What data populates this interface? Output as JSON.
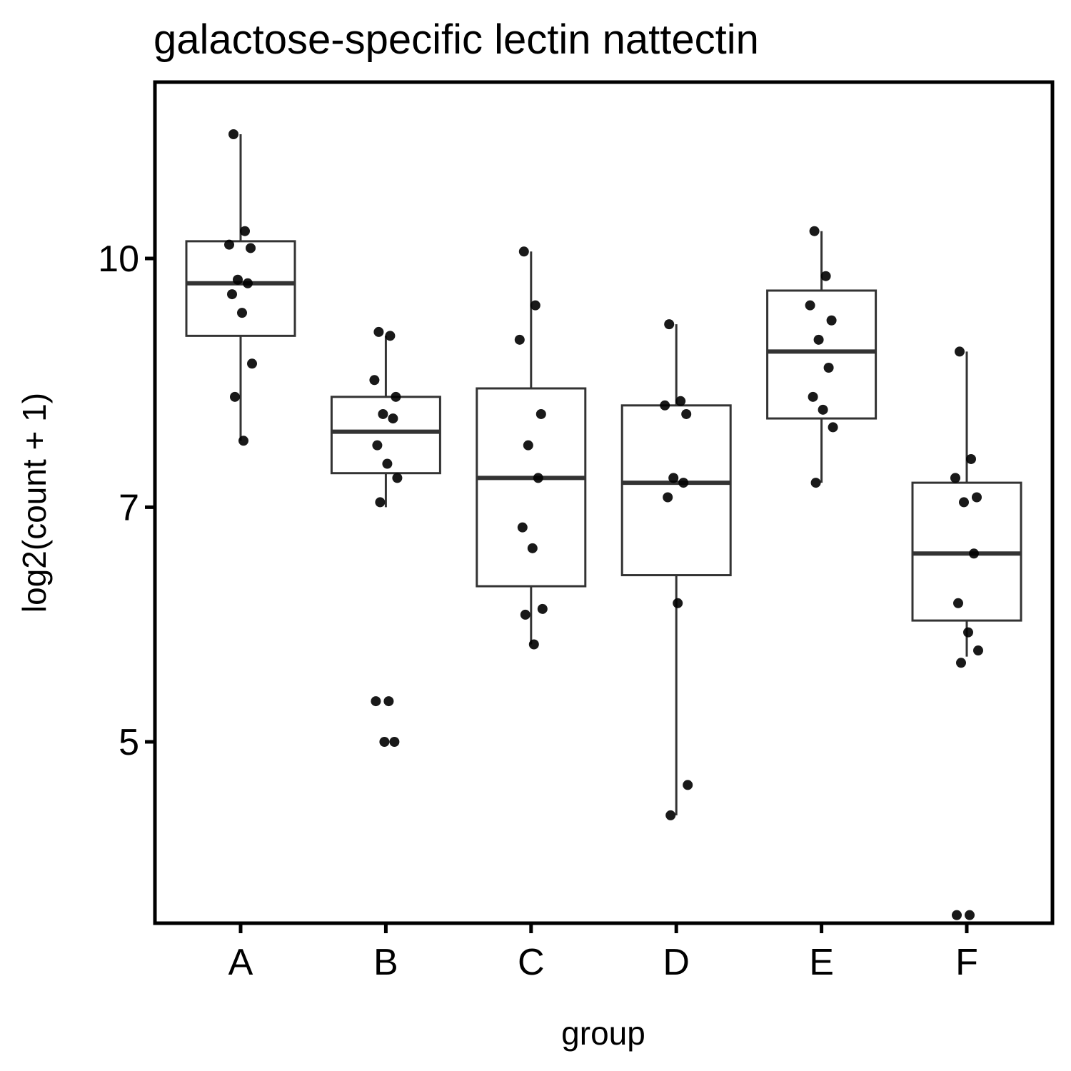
{
  "chart_data": {
    "type": "box",
    "title": "galactose-specific lectin nattectin",
    "xlabel": "group",
    "ylabel": "log2(count + 1)",
    "y_scale": "log",
    "y_ticks": [
      5,
      7,
      10
    ],
    "y_tick_labels": [
      "5",
      "7",
      "10"
    ],
    "ylim": [
      3.7,
      12.3
    ],
    "grid": false,
    "legend": "none",
    "colors": {
      "box_line": "#333333",
      "point": "#000000",
      "frame": "#000000"
    },
    "categories": [
      "A",
      "B",
      "C",
      "D",
      "E",
      "F"
    ],
    "boxes": [
      {
        "group": "A",
        "whisker_low": 7.7,
        "q1": 8.95,
        "median": 9.65,
        "q3": 10.25,
        "whisker_high": 11.95
      },
      {
        "group": "B",
        "whisker_low": 7.0,
        "q1": 7.35,
        "median": 7.8,
        "q3": 8.2,
        "whisker_high": 8.95
      },
      {
        "group": "C",
        "whisker_low": 5.75,
        "q1": 6.25,
        "median": 7.3,
        "q3": 8.3,
        "whisker_high": 10.1
      },
      {
        "group": "D",
        "whisker_low": 4.5,
        "q1": 6.35,
        "median": 7.25,
        "q3": 8.1,
        "whisker_high": 9.1
      },
      {
        "group": "E",
        "whisker_low": 7.25,
        "q1": 7.95,
        "median": 8.75,
        "q3": 9.55,
        "whisker_high": 10.4
      },
      {
        "group": "F",
        "whisker_low": 5.65,
        "q1": 5.95,
        "median": 6.55,
        "q3": 7.25,
        "whisker_high": 8.75
      }
    ],
    "points": [
      {
        "group": "A",
        "values": [
          11.95,
          10.4,
          10.2,
          10.15,
          9.7,
          9.65,
          9.5,
          9.25,
          8.6,
          8.2,
          7.7
        ]
      },
      {
        "group": "B",
        "values": [
          9.0,
          8.95,
          8.4,
          8.2,
          8.0,
          7.95,
          7.65,
          7.45,
          7.3,
          7.05,
          5.3,
          5.3,
          5.0,
          5.0
        ]
      },
      {
        "group": "C",
        "values": [
          10.1,
          9.35,
          8.9,
          8.0,
          7.65,
          7.3,
          6.8,
          6.6,
          6.05,
          6.0,
          5.75
        ]
      },
      {
        "group": "D",
        "values": [
          9.1,
          8.15,
          8.1,
          8.0,
          7.3,
          7.25,
          7.1,
          6.1,
          4.7,
          4.5
        ]
      },
      {
        "group": "E",
        "values": [
          10.4,
          9.75,
          9.35,
          9.15,
          8.9,
          8.55,
          8.2,
          8.05,
          7.85,
          7.25
        ]
      },
      {
        "group": "F",
        "values": [
          8.75,
          7.5,
          7.3,
          7.1,
          7.05,
          6.55,
          6.1,
          5.85,
          5.7,
          5.6,
          3.9,
          3.9
        ]
      }
    ]
  }
}
